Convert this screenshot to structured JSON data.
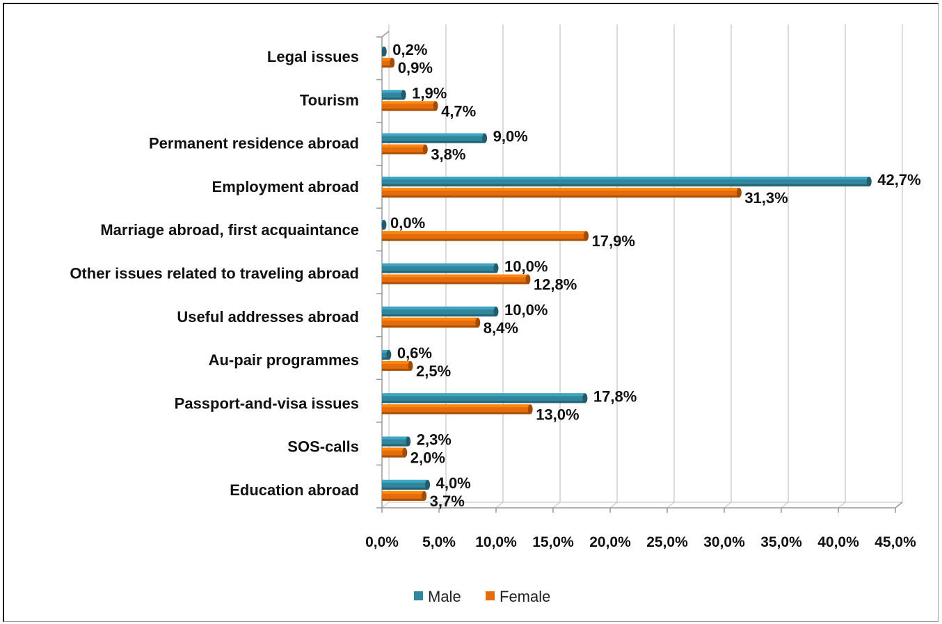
{
  "chart_data": {
    "type": "bar",
    "orientation": "horizontal",
    "categories": [
      "Legal issues",
      "Tourism",
      "Permanent residence abroad",
      "Employment abroad",
      "Marriage abroad, first acquaintance",
      "Other  issues related to traveling abroad",
      "Useful addresses abroad",
      "Au-pair programmes",
      "Passport-and-visa  issues",
      "SOS-calls",
      "Education abroad"
    ],
    "series": [
      {
        "name": "Male",
        "color": "#31859C",
        "values": [
          0.2,
          1.9,
          9.0,
          42.7,
          0.0,
          10.0,
          10.0,
          0.6,
          17.8,
          2.3,
          4.0
        ],
        "labels": [
          "0,2%",
          "1,9%",
          "9,0%",
          "42,7%",
          "0,0%",
          "10,0%",
          "10,0%",
          "0,6%",
          "17,8%",
          "2,3%",
          "4,0%"
        ]
      },
      {
        "name": "Female",
        "color": "#E46C0A",
        "values": [
          0.9,
          4.7,
          3.8,
          31.3,
          17.9,
          12.8,
          8.4,
          2.5,
          13.0,
          2.0,
          3.7
        ],
        "labels": [
          "0,9%",
          "4,7%",
          "3,8%",
          "31,3%",
          "17,9%",
          "12,8%",
          "8,4%",
          "2,5%",
          "13,0%",
          "2,0%",
          "3,7%"
        ]
      }
    ],
    "xlim": [
      0,
      45
    ],
    "xticks": [
      "0,0%",
      "5,0%",
      "10,0%",
      "15,0%",
      "20,0%",
      "25,0%",
      "30,0%",
      "35,0%",
      "40,0%",
      "45,0%"
    ],
    "title": "",
    "xlabel": "",
    "ylabel": "",
    "grid": true,
    "legend": "bottom"
  }
}
